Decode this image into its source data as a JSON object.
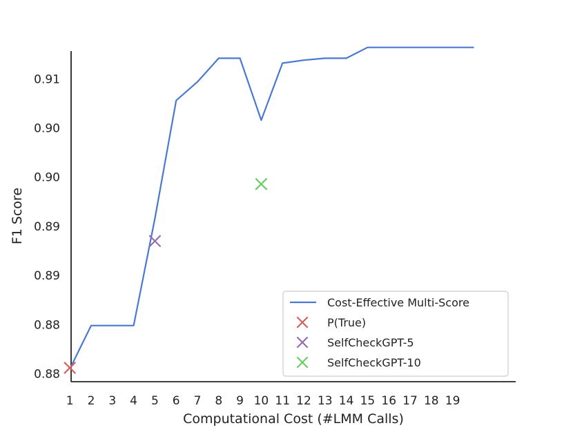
{
  "chart_data": {
    "type": "line",
    "title": "",
    "xlabel": "Computational Cost (#LMM Calls)",
    "ylabel": "F1 Score",
    "xlim": [
      0,
      21
    ],
    "ylim": [
      0.8793,
      0.9128
    ],
    "x_ticks": [
      "1",
      "2",
      "3",
      "4",
      "5",
      "6",
      "7",
      "8",
      "9",
      "10",
      "11",
      "12",
      "13",
      "14",
      "15",
      "16",
      "17",
      "18",
      "19"
    ],
    "y_ticks": [
      {
        "value": 0.8805,
        "label": "0.88"
      },
      {
        "value": 0.8855,
        "label": "0.88"
      },
      {
        "value": 0.8905,
        "label": "0.89"
      },
      {
        "value": 0.8955,
        "label": "0.89"
      },
      {
        "value": 0.9005,
        "label": "0.90"
      },
      {
        "value": 0.9055,
        "label": "0.90"
      },
      {
        "value": 0.9105,
        "label": "0.91"
      }
    ],
    "grid": false,
    "legend_position": "lower-right",
    "series": [
      {
        "name": "Cost-Effective Multi-Score",
        "kind": "line",
        "color": "#4878d0",
        "x": [
          1,
          2,
          3,
          4,
          5,
          6,
          7,
          8,
          9,
          10,
          11,
          12,
          13,
          14,
          15,
          16,
          17,
          18,
          19,
          20
        ],
        "y": [
          0.881,
          0.8854,
          0.8854,
          0.8854,
          0.8963,
          0.9083,
          0.9102,
          0.9126,
          0.9126,
          0.9063,
          0.9121,
          0.9124,
          0.9126,
          0.9126,
          0.9137,
          0.9137,
          0.9137,
          0.9137,
          0.9137,
          0.9137
        ]
      },
      {
        "name": "P(True)",
        "kind": "marker",
        "color": "#d65f5f",
        "x": [
          1
        ],
        "y": [
          0.8811
        ]
      },
      {
        "name": "SelfCheckGPT-5",
        "kind": "marker",
        "color": "#956cb4",
        "x": [
          5
        ],
        "y": [
          0.894
        ]
      },
      {
        "name": "SelfCheckGPT-10",
        "kind": "marker",
        "color": "#6acc64",
        "x": [
          10
        ],
        "y": [
          0.8998
        ]
      }
    ]
  }
}
